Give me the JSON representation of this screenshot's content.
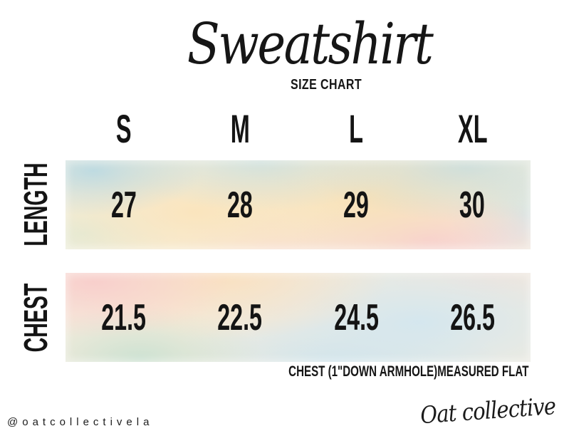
{
  "title": "Sweatshirt",
  "subtitle": "SIZE CHART",
  "chart_data": {
    "type": "table",
    "title": "Sweatshirt",
    "subtitle": "SIZE CHART",
    "columns": [
      "S",
      "M",
      "L",
      "XL"
    ],
    "rows": [
      {
        "label": "LENGTH",
        "values": [
          "27",
          "28",
          "29",
          "30"
        ]
      },
      {
        "label": "CHEST",
        "values": [
          "21.5",
          "22.5",
          "24.5",
          "26.5"
        ]
      }
    ],
    "note": "CHEST (1\"DOWN ARMHOLE)MEASURED FLAT",
    "units": "inches"
  },
  "footer": {
    "handle": "@oatcollectivela",
    "brand_signature": "Oat collective"
  },
  "colors": {
    "text": "#141414",
    "background": "#ffffff",
    "watercolor_blue": "#cfe4ef",
    "watercolor_peach": "#f9e2c2",
    "watercolor_pink": "#f8d2dc",
    "watercolor_mint": "#cde3d4",
    "watercolor_cream": "#f7eed9"
  }
}
